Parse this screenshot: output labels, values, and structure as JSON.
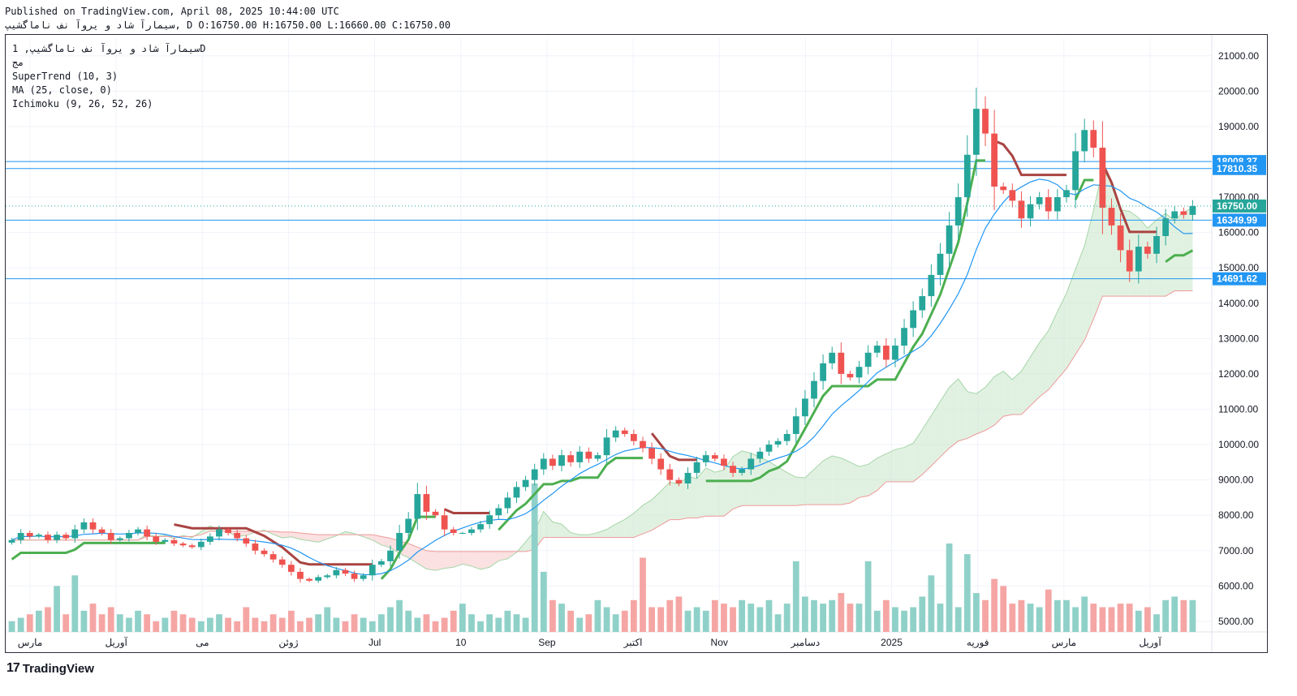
{
  "header": {
    "published": "Published on TradingView.com, April 08, 2025 10:44:00 UTC",
    "ohlc": "سیمارآ شاد و یروآ نف ناماگشیپ, D O:16750.00 H:16750.00 L:16660.00 C:16750.00"
  },
  "legend": {
    "symbol": "سیمارآ شاد و یروآ نف ناماگشیپ, 1D",
    "exchange": "مج",
    "supertrend": "SuperTrend (10, 3)",
    "ma": "MA (25, close, 0)",
    "ichimoku": "Ichimoku (9, 26, 52, 26)"
  },
  "brand": {
    "logo": "17",
    "name": "TradingView"
  },
  "colors": {
    "up": "#26a69a",
    "down": "#ef5350",
    "supertrend_up": "#4caf50",
    "supertrend_down": "#a94442",
    "ma": "#2196f3",
    "cloud_green": "#c8e6c9",
    "cloud_red": "#f8c8c8",
    "hline": "#2196f3",
    "last_price": "#26a69a"
  },
  "chart_data": {
    "type": "candlestick",
    "timeframe": "1D",
    "ylim": [
      4700,
      21500
    ],
    "y_ticks": [
      "21000.00",
      "20000.00",
      "19000.00",
      "18000.00",
      "17000.00",
      "16000.00",
      "15000.00",
      "14000.00",
      "13000.00",
      "12000.00",
      "11000.00",
      "10000.00",
      "9000.00",
      "8000.00",
      "7000.00",
      "6000.00",
      "5000.00"
    ],
    "x_ticks": [
      "مارس",
      "آوریل",
      "می",
      "ژوئن",
      "Jul",
      "10",
      "Sep",
      "اکتبر",
      "Nov",
      "دسامبر",
      "2025",
      "فوریه",
      "مارس",
      "آوریل"
    ],
    "horizontal_levels": [
      {
        "label": "18008.37",
        "value": 18008.37
      },
      {
        "label": "17810.35",
        "value": 17810.35
      },
      {
        "label": "16349.99",
        "value": 16349.99
      },
      {
        "label": "14691.62",
        "value": 14691.62
      }
    ],
    "last_price": {
      "label": "16750.00",
      "value": 16750
    },
    "close_series": [
      7300,
      7500,
      7400,
      7450,
      7300,
      7450,
      7350,
      7600,
      7800,
      7600,
      7500,
      7300,
      7350,
      7500,
      7600,
      7400,
      7250,
      7300,
      7200,
      7150,
      7100,
      7250,
      7400,
      7600,
      7500,
      7350,
      7200,
      7000,
      6900,
      6750,
      6600,
      6400,
      6200,
      6150,
      6250,
      6300,
      6450,
      6350,
      6200,
      6300,
      6600,
      6700,
      7000,
      7500,
      7900,
      8600,
      8100,
      8000,
      7600,
      7500,
      7500,
      7600,
      7750,
      8000,
      8200,
      8500,
      8800,
      9000,
      9300,
      9600,
      9400,
      9700,
      9500,
      9800,
      9600,
      9700,
      10200,
      10400,
      10300,
      10100,
      9900,
      9600,
      9300,
      9000,
      8900,
      9200,
      9500,
      9700,
      9600,
      9400,
      9200,
      9300,
      9600,
      9800,
      10000,
      10100,
      10300,
      10800,
      11300,
      11800,
      12300,
      12600,
      12000,
      11900,
      12200,
      12600,
      12800,
      12400,
      12800,
      13300,
      13800,
      14200,
      14800,
      15400,
      16200,
      17000,
      18200,
      19500,
      18800,
      17300,
      17200,
      16900,
      16400,
      16800,
      17000,
      16600,
      17000,
      17200,
      18300,
      18900,
      18400,
      16700,
      16200,
      15500,
      14900,
      15600,
      15400,
      15900,
      16400,
      16600,
      16500,
      16750
    ],
    "volume_range": [
      4700,
      7200
    ],
    "volume_series": [
      5000,
      5100,
      5200,
      5300,
      5400,
      6000,
      5200,
      6300,
      5300,
      5500,
      5200,
      5400,
      5200,
      5100,
      5300,
      5200,
      5000,
      5100,
      5300,
      5200,
      5100,
      5000,
      5100,
      5200,
      5100,
      5000,
      5400,
      5100,
      5000,
      5200,
      5100,
      5300,
      5000,
      5100,
      5200,
      5400,
      5100,
      5000,
      5200,
      5100,
      5000,
      5200,
      5400,
      5600,
      5300,
      5100,
      5200,
      5000,
      5100,
      5300,
      5500,
      5200,
      5000,
      5200,
      5100,
      5300,
      5200,
      5100,
      8900,
      6400,
      5600,
      5500,
      5300,
      5100,
      5200,
      5600,
      5400,
      5200,
      5300,
      5600,
      6800,
      5400,
      5400,
      5600,
      5700,
      5300,
      5400,
      5300,
      5600,
      5500,
      5400,
      5600,
      5500,
      5400,
      5600,
      5200,
      5500,
      6700,
      5700,
      5600,
      5500,
      5600,
      5800,
      5500,
      5500,
      6700,
      5300,
      5600,
      5400,
      5300,
      5400,
      5700,
      6300,
      5500,
      7200,
      5400,
      6900,
      5800,
      5600,
      6200,
      6000,
      5500,
      5600,
      5500,
      5400,
      5900,
      5600,
      5600,
      5400,
      5700,
      5500,
      5400,
      5400,
      5500,
      5500,
      5300,
      5400,
      5200,
      5600,
      5700,
      5600,
      5600
    ]
  }
}
